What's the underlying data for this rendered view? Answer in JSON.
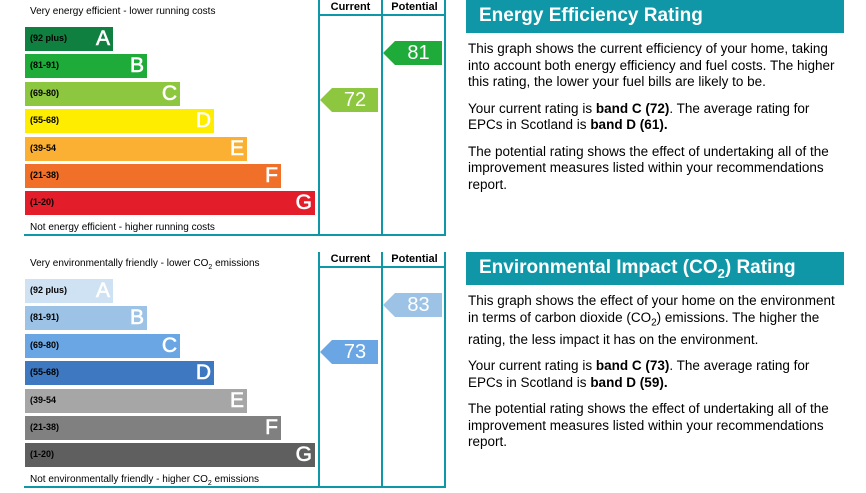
{
  "energy": {
    "title": "Energy Efficiency Rating",
    "top_caption": "Very energy efficient - lower running costs",
    "bottom_caption": "Not energy efficient - higher running costs",
    "col_current": "Current",
    "col_potential": "Potential",
    "bands": [
      {
        "range": "(92 plus)",
        "letter": "A",
        "color": "#108040"
      },
      {
        "range": "(81-91)",
        "letter": "B",
        "color": "#1eab3a"
      },
      {
        "range": "(69-80)",
        "letter": "C",
        "color": "#8dc63f"
      },
      {
        "range": "(55-68)",
        "letter": "D",
        "color": "#ffed00"
      },
      {
        "range": "(39-54",
        "letter": "E",
        "color": "#fbb034"
      },
      {
        "range": "(21-38)",
        "letter": "F",
        "color": "#f0702a"
      },
      {
        "range": "(1-20)",
        "letter": "G",
        "color": "#e31d2a"
      }
    ],
    "current": {
      "value": "72",
      "band": "C",
      "color": "#8dc63f"
    },
    "potential": {
      "value": "81",
      "band": "B",
      "color": "#1eab3a"
    },
    "description": "This graph shows the current efficiency of your home, taking into account both energy efficiency and fuel costs. The higher this rating, the lower your fuel bills are likely to be.",
    "current_text_pre": "Your current rating is ",
    "current_text_bold": "band C (72)",
    "current_text_mid": ". The average rating for EPCs in Scotland is ",
    "current_text_bold2": "band D (61).",
    "potential_text": "The potential rating shows the effect of undertaking all of the improvement measures listed within your recommendations report."
  },
  "environment": {
    "title_pre": "Environmental Impact (CO",
    "title_sub": "2",
    "title_post": ") Rating",
    "top_caption_pre": "Very environmentally friendly - lower CO",
    "top_caption_sub": "2",
    "top_caption_post": " emissions",
    "bottom_caption_pre": "Not environmentally friendly - higher CO",
    "bottom_caption_sub": "2",
    "bottom_caption_post": " emissions",
    "col_current": "Current",
    "col_potential": "Potential",
    "bands": [
      {
        "range": "(92 plus)",
        "letter": "A",
        "color": "#cfe2f3"
      },
      {
        "range": "(81-91)",
        "letter": "B",
        "color": "#9cc3e6"
      },
      {
        "range": "(69-80)",
        "letter": "C",
        "color": "#6aa6e3"
      },
      {
        "range": "(55-68)",
        "letter": "D",
        "color": "#3e78c1"
      },
      {
        "range": "(39-54",
        "letter": "E",
        "color": "#a6a6a6"
      },
      {
        "range": "(21-38)",
        "letter": "F",
        "color": "#808080"
      },
      {
        "range": "(1-20)",
        "letter": "G",
        "color": "#5f5f5f"
      }
    ],
    "current": {
      "value": "73",
      "band": "C",
      "color": "#6aa6e3"
    },
    "potential": {
      "value": "83",
      "band": "B",
      "color": "#9cc3e6"
    },
    "description_pre": "This graph shows the effect of your home on the environment in terms of carbon dioxide (CO",
    "description_sub": "2",
    "description_post": ") emissions. The higher the rating, the less impact it has on the environment.",
    "current_text_pre": "Your current rating is ",
    "current_text_bold": "band C (73)",
    "current_text_mid": ". The average rating for EPCs in Scotland is ",
    "current_text_bold2": "band D (59).",
    "potential_text": "The potential rating shows the effect of undertaking all of the improvement measures listed within your recommendations report."
  }
}
